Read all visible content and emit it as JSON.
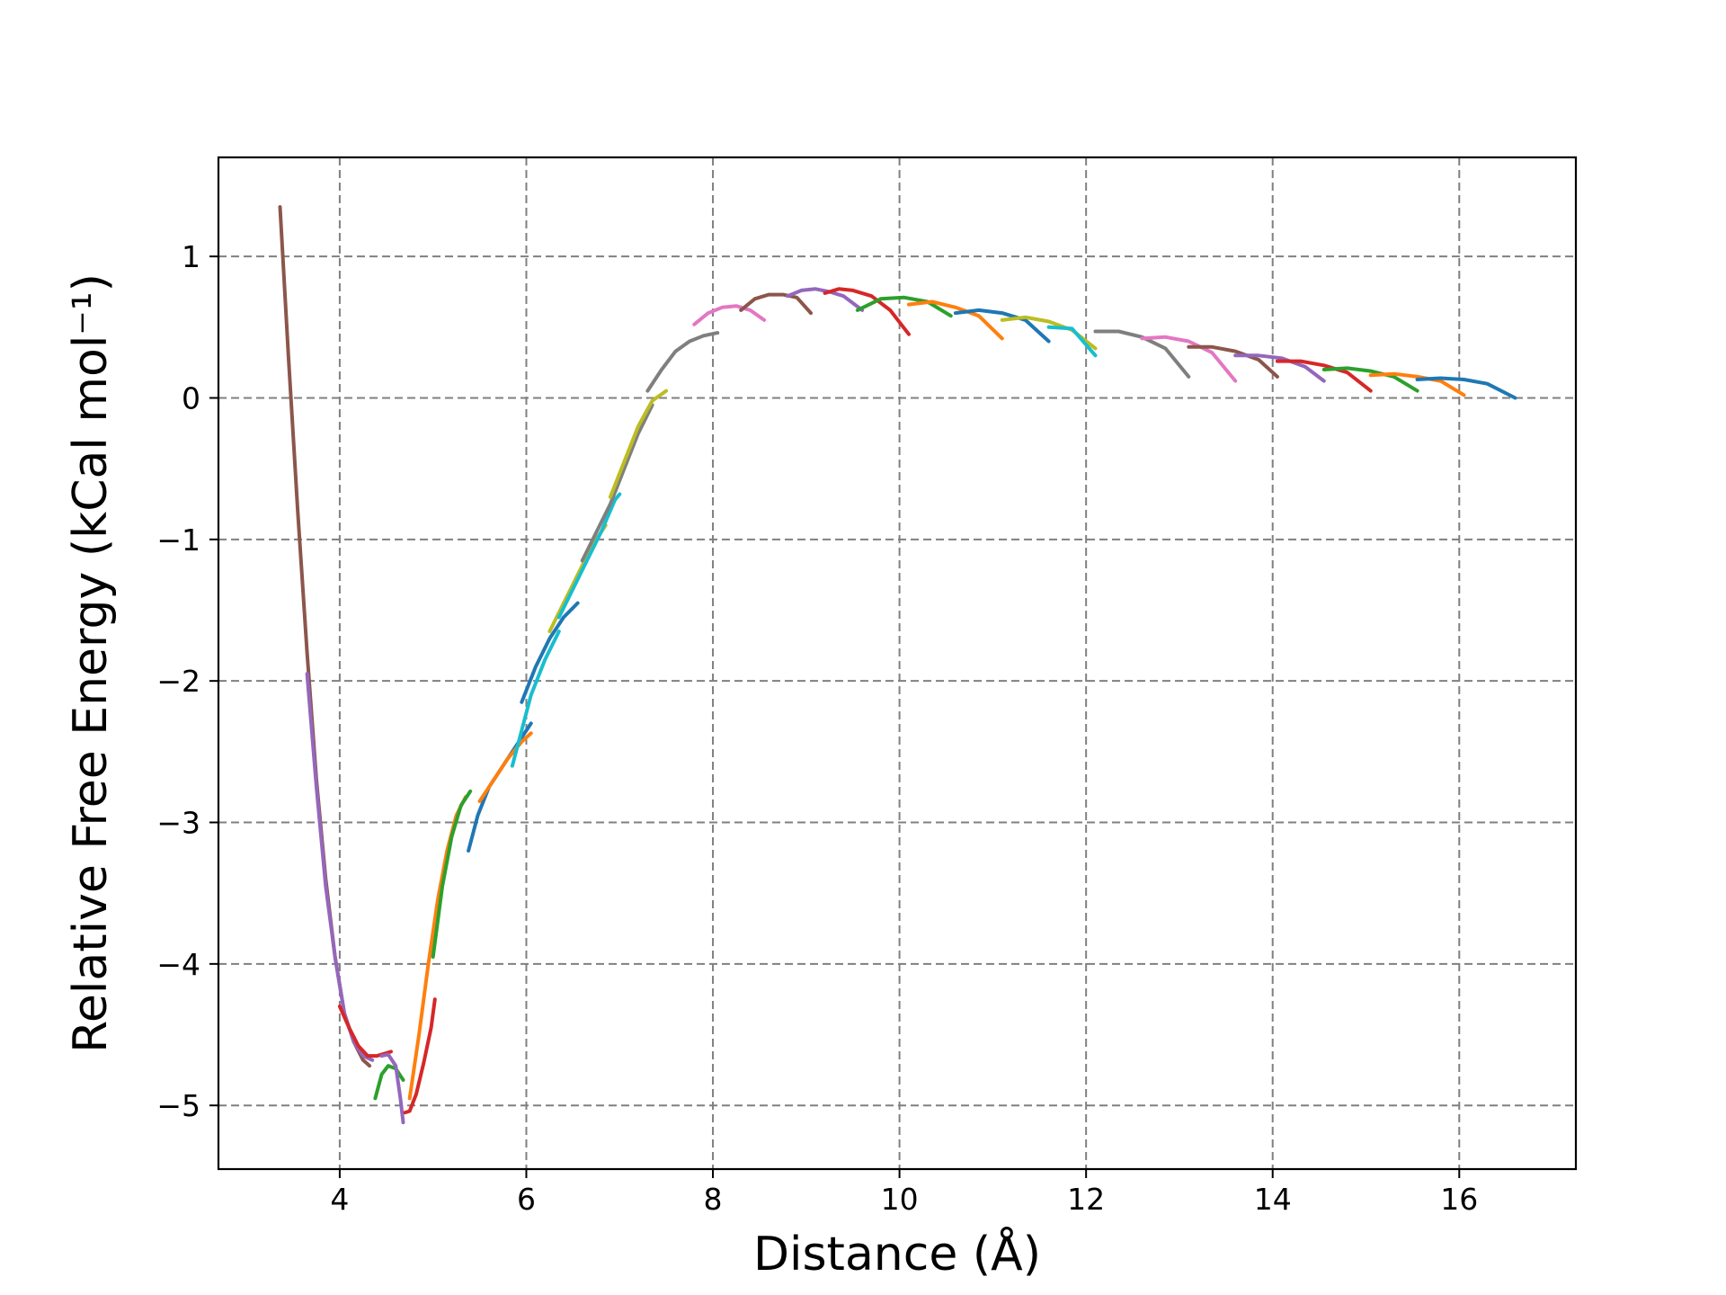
{
  "colors": {
    "grid": "#808080",
    "frame": "#000000",
    "series_palette": [
      "#1f77b4",
      "#ff7f0e",
      "#2ca02c",
      "#d62728",
      "#9467bd",
      "#8c564b",
      "#e377c2",
      "#7f7f7f",
      "#bcbd22",
      "#17becf"
    ]
  },
  "chart_data": {
    "type": "line",
    "title": "",
    "xlabel": "Distance (Å)",
    "ylabel": "Relative Free Energy (kCal mol⁻¹)",
    "xlim": [
      2.7,
      17.25
    ],
    "ylim": [
      -5.45,
      1.7
    ],
    "xticks": [
      4,
      6,
      8,
      10,
      12,
      14,
      16
    ],
    "xtick_labels": [
      "4",
      "6",
      "8",
      "10",
      "12",
      "14",
      "16"
    ],
    "yticks": [
      -5,
      -4,
      -3,
      -2,
      -1,
      0,
      1
    ],
    "ytick_labels": [
      "−5",
      "−4",
      "−3",
      "−2",
      "−1",
      "0",
      "1"
    ],
    "grid": true,
    "grid_style": "dashed",
    "legend": "none",
    "curve_description": "overlapping umbrella-sampling window PMF segments",
    "series": [
      {
        "color": "#8c564b",
        "x": [
          3.36,
          3.45,
          3.55,
          3.65,
          3.75,
          3.85,
          3.95,
          4.05,
          4.15,
          4.25,
          4.32
        ],
        "y": [
          1.35,
          0.3,
          -0.8,
          -1.8,
          -2.7,
          -3.4,
          -3.95,
          -4.35,
          -4.55,
          -4.68,
          -4.72
        ]
      },
      {
        "color": "#9467bd",
        "x": [
          3.65,
          3.75,
          3.85,
          3.95,
          4.05,
          4.15,
          4.25,
          4.35
        ],
        "y": [
          -1.95,
          -2.75,
          -3.45,
          -3.95,
          -4.35,
          -4.55,
          -4.65,
          -4.68
        ]
      },
      {
        "color": "#d62728",
        "x": [
          4.0,
          4.1,
          4.2,
          4.3,
          4.4,
          4.5,
          4.55
        ],
        "y": [
          -4.3,
          -4.45,
          -4.58,
          -4.65,
          -4.65,
          -4.63,
          -4.62
        ]
      },
      {
        "color": "#2ca02c",
        "x": [
          4.38,
          4.45,
          4.52,
          4.6,
          4.68
        ],
        "y": [
          -4.95,
          -4.78,
          -4.72,
          -4.74,
          -4.82
        ]
      },
      {
        "color": "#9467bd",
        "x": [
          4.45,
          4.52,
          4.6,
          4.65,
          4.68
        ],
        "y": [
          -4.65,
          -4.64,
          -4.72,
          -4.95,
          -5.12
        ]
      },
      {
        "color": "#d62728",
        "x": [
          4.7,
          4.75,
          4.82,
          4.9,
          4.98,
          5.02
        ],
        "y": [
          -5.05,
          -5.04,
          -4.92,
          -4.7,
          -4.45,
          -4.25
        ]
      },
      {
        "color": "#ff7f0e",
        "x": [
          4.75,
          4.85,
          4.95,
          5.05,
          5.15,
          5.25,
          5.35
        ],
        "y": [
          -4.95,
          -4.5,
          -4.0,
          -3.55,
          -3.2,
          -2.95,
          -2.82
        ]
      },
      {
        "color": "#2ca02c",
        "x": [
          5.0,
          5.1,
          5.2,
          5.3,
          5.4
        ],
        "y": [
          -3.95,
          -3.45,
          -3.1,
          -2.88,
          -2.78
        ]
      },
      {
        "color": "#1f77b4",
        "x": [
          5.38,
          5.48,
          5.6,
          5.75,
          5.9,
          6.05
        ],
        "y": [
          -3.2,
          -2.95,
          -2.75,
          -2.6,
          -2.45,
          -2.3
        ]
      },
      {
        "color": "#ff7f0e",
        "x": [
          5.5,
          5.65,
          5.8,
          5.95,
          6.05
        ],
        "y": [
          -2.85,
          -2.7,
          -2.55,
          -2.43,
          -2.37
        ]
      },
      {
        "color": "#17becf",
        "x": [
          5.85,
          5.95,
          6.05,
          6.2,
          6.35
        ],
        "y": [
          -2.6,
          -2.35,
          -2.1,
          -1.85,
          -1.65
        ]
      },
      {
        "color": "#1f77b4",
        "x": [
          5.95,
          6.1,
          6.25,
          6.4,
          6.55
        ],
        "y": [
          -2.15,
          -1.9,
          -1.7,
          -1.55,
          -1.45
        ]
      },
      {
        "color": "#bcbd22",
        "x": [
          6.25,
          6.4,
          6.55,
          6.7,
          6.85
        ],
        "y": [
          -1.65,
          -1.45,
          -1.25,
          -1.05,
          -0.9
        ]
      },
      {
        "color": "#17becf",
        "x": [
          6.35,
          6.5,
          6.65,
          6.8,
          6.95,
          7.0
        ],
        "y": [
          -1.55,
          -1.35,
          -1.15,
          -0.95,
          -0.72,
          -0.68
        ]
      },
      {
        "color": "#7f7f7f",
        "x": [
          6.6,
          6.75,
          6.9,
          7.05,
          7.2,
          7.35
        ],
        "y": [
          -1.15,
          -0.95,
          -0.75,
          -0.5,
          -0.25,
          -0.05
        ]
      },
      {
        "color": "#bcbd22",
        "x": [
          6.9,
          7.05,
          7.2,
          7.35,
          7.5
        ],
        "y": [
          -0.7,
          -0.45,
          -0.2,
          -0.02,
          0.05
        ]
      },
      {
        "color": "#7f7f7f",
        "x": [
          7.3,
          7.45,
          7.6,
          7.75,
          7.9,
          8.05
        ],
        "y": [
          0.05,
          0.2,
          0.33,
          0.4,
          0.44,
          0.46
        ]
      },
      {
        "color": "#e377c2",
        "x": [
          7.8,
          7.95,
          8.1,
          8.25,
          8.4,
          8.55
        ],
        "y": [
          0.52,
          0.6,
          0.64,
          0.65,
          0.62,
          0.55
        ]
      },
      {
        "color": "#8c564b",
        "x": [
          8.3,
          8.45,
          8.6,
          8.75,
          8.9,
          9.05
        ],
        "y": [
          0.62,
          0.7,
          0.73,
          0.73,
          0.71,
          0.6
        ]
      },
      {
        "color": "#9467bd",
        "x": [
          8.8,
          8.95,
          9.1,
          9.25,
          9.4,
          9.6
        ],
        "y": [
          0.72,
          0.76,
          0.77,
          0.75,
          0.72,
          0.62
        ]
      },
      {
        "color": "#d62728",
        "x": [
          9.2,
          9.35,
          9.5,
          9.7,
          9.9,
          10.1
        ],
        "y": [
          0.74,
          0.77,
          0.76,
          0.72,
          0.62,
          0.45
        ]
      },
      {
        "color": "#2ca02c",
        "x": [
          9.55,
          9.8,
          10.05,
          10.3,
          10.55
        ],
        "y": [
          0.62,
          0.7,
          0.71,
          0.68,
          0.58
        ]
      },
      {
        "color": "#ff7f0e",
        "x": [
          10.1,
          10.35,
          10.6,
          10.85,
          11.1
        ],
        "y": [
          0.66,
          0.68,
          0.64,
          0.58,
          0.42
        ]
      },
      {
        "color": "#1f77b4",
        "x": [
          10.6,
          10.85,
          11.1,
          11.35,
          11.6
        ],
        "y": [
          0.6,
          0.62,
          0.6,
          0.55,
          0.4
        ]
      },
      {
        "color": "#bcbd22",
        "x": [
          11.1,
          11.35,
          11.6,
          11.85,
          12.1
        ],
        "y": [
          0.55,
          0.57,
          0.54,
          0.48,
          0.35
        ]
      },
      {
        "color": "#17becf",
        "x": [
          11.6,
          11.85,
          12.1
        ],
        "y": [
          0.5,
          0.49,
          0.3
        ]
      },
      {
        "color": "#7f7f7f",
        "x": [
          12.1,
          12.35,
          12.6,
          12.85,
          13.1
        ],
        "y": [
          0.47,
          0.47,
          0.43,
          0.35,
          0.15
        ]
      },
      {
        "color": "#e377c2",
        "x": [
          12.6,
          12.85,
          13.1,
          13.35,
          13.6
        ],
        "y": [
          0.42,
          0.43,
          0.4,
          0.32,
          0.12
        ]
      },
      {
        "color": "#8c564b",
        "x": [
          13.1,
          13.35,
          13.6,
          13.85,
          14.05
        ],
        "y": [
          0.36,
          0.36,
          0.33,
          0.27,
          0.15
        ]
      },
      {
        "color": "#9467bd",
        "x": [
          13.6,
          13.85,
          14.1,
          14.35,
          14.55
        ],
        "y": [
          0.3,
          0.3,
          0.28,
          0.22,
          0.12
        ]
      },
      {
        "color": "#d62728",
        "x": [
          14.05,
          14.3,
          14.55,
          14.8,
          15.05
        ],
        "y": [
          0.26,
          0.26,
          0.23,
          0.18,
          0.05
        ]
      },
      {
        "color": "#2ca02c",
        "x": [
          14.55,
          14.8,
          15.05,
          15.3,
          15.55
        ],
        "y": [
          0.2,
          0.21,
          0.19,
          0.15,
          0.05
        ]
      },
      {
        "color": "#ff7f0e",
        "x": [
          15.05,
          15.3,
          15.55,
          15.8,
          16.05
        ],
        "y": [
          0.16,
          0.17,
          0.15,
          0.12,
          0.02
        ]
      },
      {
        "color": "#1f77b4",
        "x": [
          15.55,
          15.8,
          16.05,
          16.3,
          16.6
        ],
        "y": [
          0.13,
          0.14,
          0.13,
          0.1,
          0.0
        ]
      }
    ]
  }
}
